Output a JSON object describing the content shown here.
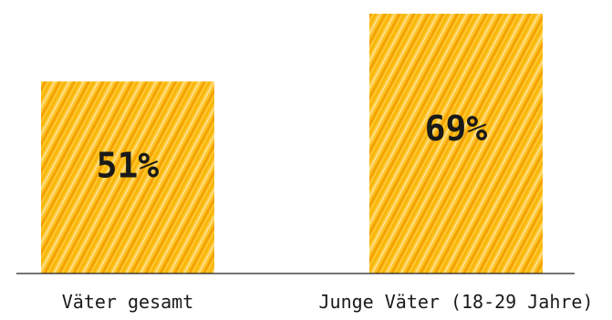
{
  "chart_data": {
    "type": "bar",
    "categories": [
      "Väter gesamt",
      "Junge Väter (18-29 Jahre)"
    ],
    "values": [
      51,
      69
    ],
    "value_labels": [
      "51%",
      "69%"
    ],
    "title": "",
    "xlabel": "",
    "ylabel": "",
    "ylim": [
      0,
      69
    ],
    "grid": false,
    "colors": {
      "bar_fill": "#FFC52E",
      "hatch": "#F3A200",
      "text": "#1a1a1a",
      "baseline": "#222222"
    }
  }
}
